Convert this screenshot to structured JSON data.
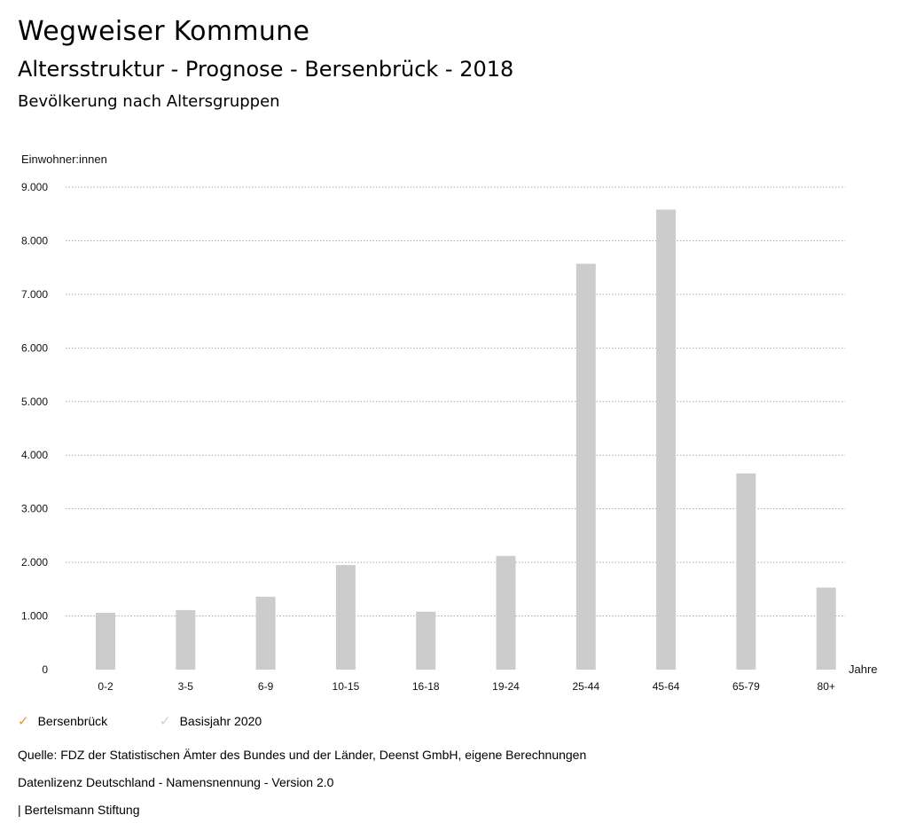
{
  "header": {
    "title": "Wegweiser Kommune",
    "subtitle": "Altersstruktur - Prognose - Bersenbrück - 2018",
    "chart_heading": "Bevölkerung nach Altersgruppen"
  },
  "chart_data": {
    "type": "bar",
    "ylabel": "Einwohner:innen",
    "xlabel": "Jahre",
    "ylim": [
      0,
      9000
    ],
    "yticks": [
      0,
      1000,
      2000,
      3000,
      4000,
      5000,
      6000,
      7000,
      8000,
      9000
    ],
    "ytick_labels": [
      "0",
      "1.000",
      "2.000",
      "3.000",
      "4.000",
      "5.000",
      "6.000",
      "7.000",
      "8.000",
      "9.000"
    ],
    "categories": [
      "0-2",
      "3-5",
      "6-9",
      "10-15",
      "16-18",
      "19-24",
      "25-44",
      "45-64",
      "65-79",
      "80+"
    ],
    "series": [
      {
        "name": "Bersenbrück",
        "values": [
          1060,
          1110,
          1360,
          1950,
          1080,
          2120,
          7570,
          8580,
          3660,
          1530
        ]
      }
    ],
    "grid": true
  },
  "legend": {
    "items": [
      {
        "label": "Bersenbrück",
        "color": "#f0932b",
        "icon": "check-icon"
      },
      {
        "label": "Basisjahr 2020",
        "color": "#cccccc",
        "icon": "check-icon"
      }
    ]
  },
  "colors": {
    "bar": "#cccccc",
    "grid": "#aaaaaa"
  },
  "footer": {
    "source": "Quelle: FDZ der Statistischen Ämter des Bundes und der Länder, Deenst GmbH, eigene Berechnungen",
    "license": "Datenlizenz Deutschland - Namensnennung - Version 2.0",
    "publisher": "| Bertelsmann Stiftung"
  }
}
